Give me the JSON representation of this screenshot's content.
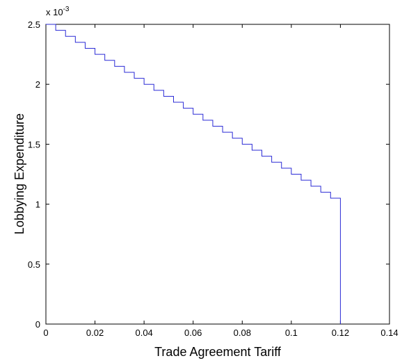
{
  "chart_data": {
    "type": "line",
    "title": "",
    "xlabel": "Trade Agreement Tariff",
    "ylabel": "Lobbying Expenditure",
    "y_multiplier_label": "x 10",
    "y_multiplier_exponent": "-3",
    "xlim": [
      0,
      0.14
    ],
    "ylim": [
      0,
      2.5
    ],
    "grid": false,
    "legend": "none",
    "x_ticks": [
      0,
      0.02,
      0.04,
      0.06,
      0.08,
      0.1,
      0.12,
      0.14
    ],
    "x_tick_labels": [
      "0",
      "0.02",
      "0.04",
      "0.06",
      "0.08",
      "0.1",
      "0.12",
      "0.14"
    ],
    "y_ticks": [
      0,
      0.5,
      1,
      1.5,
      2,
      2.5
    ],
    "y_tick_labels": [
      "0",
      "0.5",
      "1",
      "1.5",
      "2",
      "2.5"
    ],
    "series": [
      {
        "color": "#2b2bd6",
        "style": "staircase",
        "x_start": 0,
        "y_start": 2.5,
        "x_end": 0.12,
        "y_end": 0,
        "step_dx": 0.002,
        "step_dy": 0.05
      }
    ]
  }
}
